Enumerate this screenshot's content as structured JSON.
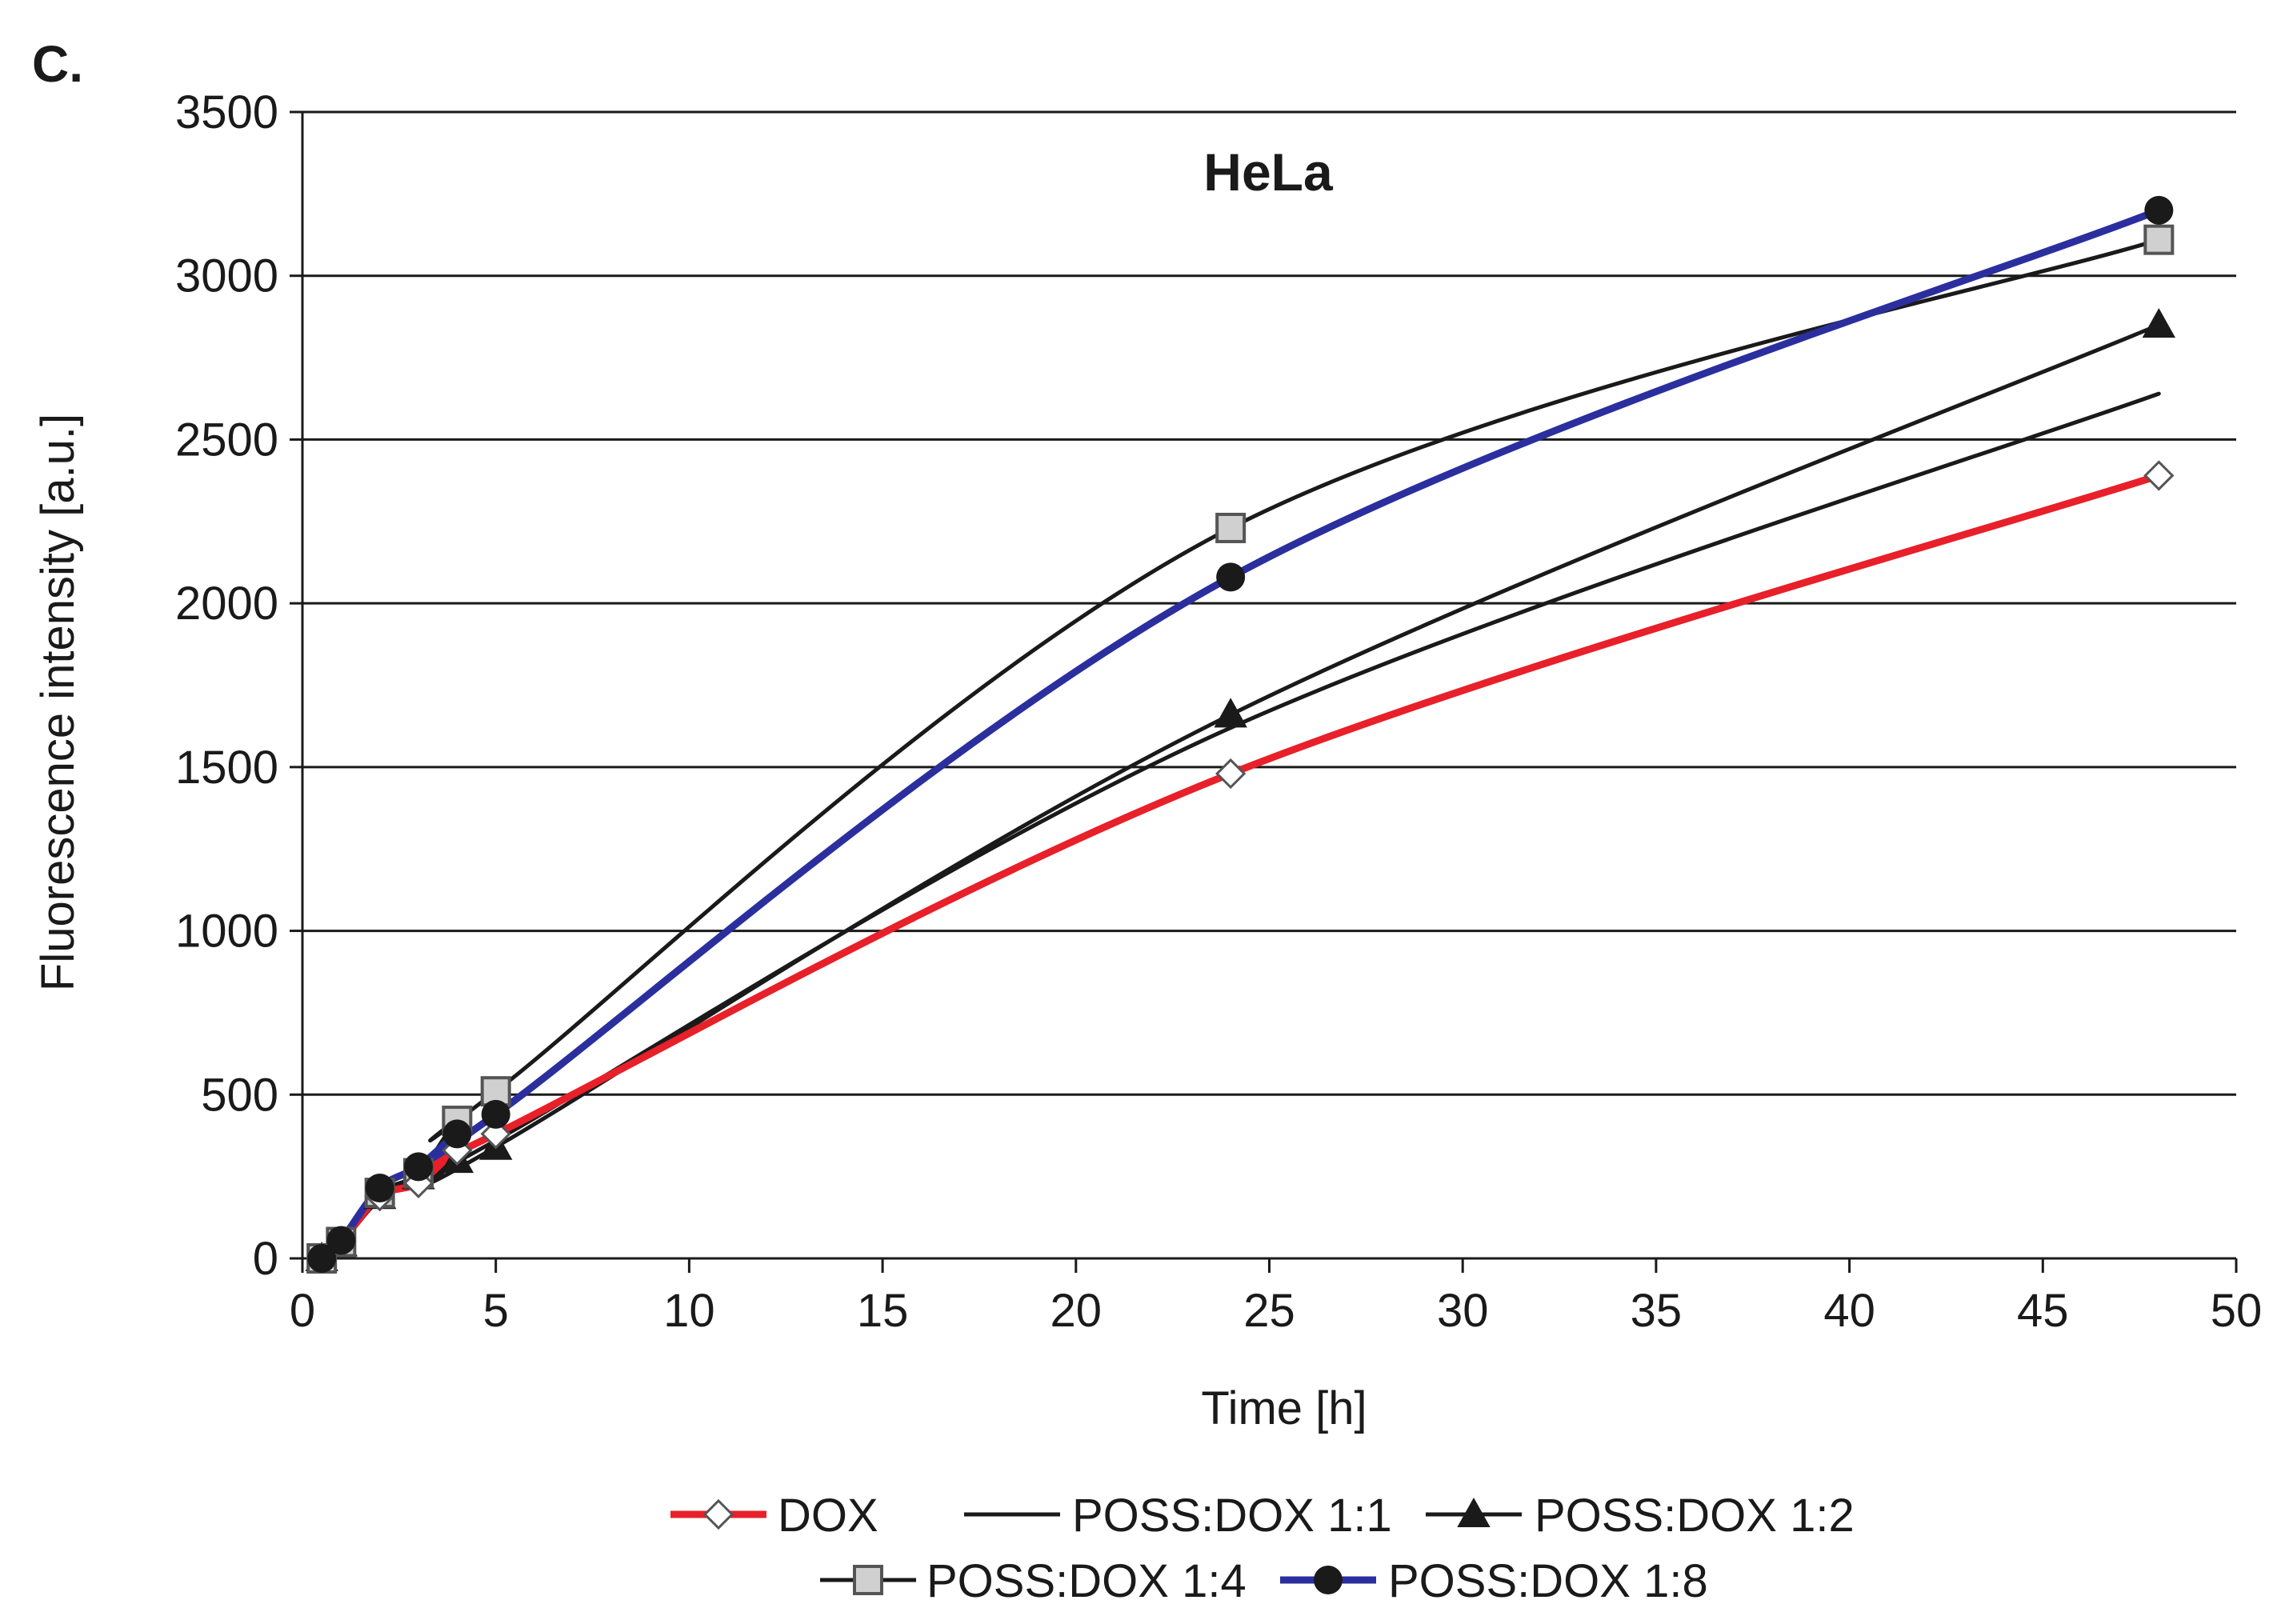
{
  "panel_label": "C.",
  "chart_data": {
    "type": "line",
    "title": "HeLa",
    "xlabel": "Time [h]",
    "ylabel": "Fluorescence intensity [a.u.]",
    "xlim": [
      0,
      50
    ],
    "ylim": [
      0,
      3500
    ],
    "xticks": [
      0,
      5,
      10,
      15,
      20,
      25,
      30,
      35,
      40,
      45,
      50
    ],
    "yticks": [
      0,
      500,
      1000,
      1500,
      2000,
      2500,
      3000,
      3500
    ],
    "grid": "horizontal",
    "legend_position": "bottom",
    "series": [
      {
        "name": "DOX",
        "color": "#e8202a",
        "marker": "diamond-open",
        "x": [
          0.5,
          1,
          2,
          3,
          4,
          5,
          24,
          48
        ],
        "y": [
          0,
          50,
          190,
          230,
          330,
          380,
          1480,
          2390
        ]
      },
      {
        "name": "POSS:DOX 1:1",
        "color": "#1a1a1a",
        "marker": "none",
        "x": [
          0.5,
          1,
          2,
          3,
          4,
          5,
          24,
          48
        ],
        "y": [
          0,
          45,
          180,
          240,
          300,
          360,
          1620,
          2640
        ]
      },
      {
        "name": "POSS:DOX 1:2",
        "color": "#1a1a1a",
        "marker": "triangle",
        "x": [
          0.5,
          1,
          2,
          3,
          4,
          5,
          24,
          48
        ],
        "y": [
          0,
          45,
          190,
          250,
          300,
          340,
          1660,
          2850
        ]
      },
      {
        "name": "POSS:DOX 1:4",
        "color": "#1a1a1a",
        "marker": "square-open",
        "x": [
          0.5,
          1,
          2,
          3,
          4,
          5,
          24,
          48
        ],
        "y": [
          0,
          50,
          200,
          260,
          420,
          510,
          2230,
          3110
        ]
      },
      {
        "name": "POSS:DOX 1:8",
        "color": "#2b2f9e",
        "marker": "circle",
        "x": [
          0.5,
          1,
          2,
          3,
          4,
          5,
          24,
          48
        ],
        "y": [
          0,
          55,
          215,
          280,
          380,
          440,
          2080,
          3200
        ]
      }
    ]
  }
}
